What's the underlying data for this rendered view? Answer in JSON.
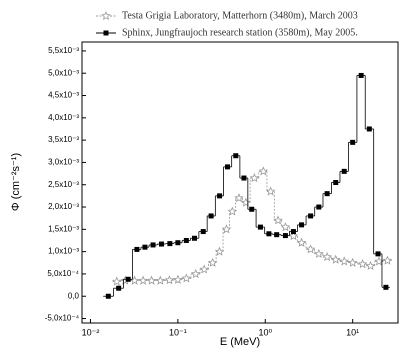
{
  "chart_data": {
    "type": "step",
    "x_label": "E (MeV)",
    "y_label": "Φ (cm⁻²s⁻¹)",
    "log_x": true,
    "xlim": [
      0.008,
      33
    ],
    "xticks": [
      {
        "value": 0.01,
        "label": "10⁻²"
      },
      {
        "value": 0.1,
        "label": "10⁻¹"
      },
      {
        "value": 1,
        "label": "10⁰"
      },
      {
        "value": 10,
        "label": "10¹"
      }
    ],
    "ylim": [
      -0.0006,
      0.0057
    ],
    "yticks": [
      {
        "value": 0.0055,
        "label": "5,5x10⁻³"
      },
      {
        "value": 0.005,
        "label": "5,0x10⁻³"
      },
      {
        "value": 0.0045,
        "label": "4,5x10⁻³"
      },
      {
        "value": 0.004,
        "label": "4,0x10⁻³"
      },
      {
        "value": 0.0035,
        "label": "3,5x10⁻³"
      },
      {
        "value": 0.003,
        "label": "3,0x10⁻³"
      },
      {
        "value": 0.0025,
        "label": "2,5x10⁻³"
      },
      {
        "value": 0.002,
        "label": "2,0x10⁻³"
      },
      {
        "value": 0.0015,
        "label": "1,5x10⁻³"
      },
      {
        "value": 0.001,
        "label": "1,0x10⁻³"
      },
      {
        "value": 0.0005,
        "label": "5,0x10⁻⁴"
      },
      {
        "value": 0,
        "label": "0,0"
      },
      {
        "value": -0.0005,
        "label": "-5,0x10⁻⁴"
      }
    ],
    "series": [
      {
        "name": "Testa Grigia Laboratory, Matterhorn (3480m), March 2003",
        "color": "#999999",
        "marker": "star",
        "x": [
          0.02,
          0.025,
          0.032,
          0.04,
          0.05,
          0.063,
          0.08,
          0.1,
          0.125,
          0.16,
          0.2,
          0.25,
          0.3,
          0.36,
          0.42,
          0.5,
          0.6,
          0.75,
          0.95,
          1.15,
          1.4,
          1.7,
          2.1,
          2.6,
          3.3,
          4.1,
          5.1,
          6.4,
          8,
          10,
          13,
          16,
          20,
          25
        ],
        "values": [
          0.00033,
          0.00035,
          0.00035,
          0.00035,
          0.00035,
          0.00035,
          0.00036,
          0.00037,
          0.0004,
          0.0005,
          0.0006,
          0.00075,
          0.001,
          0.0015,
          0.0019,
          0.0022,
          0.0021,
          0.00265,
          0.0028,
          0.00235,
          0.0017,
          0.00155,
          0.00135,
          0.0012,
          0.00105,
          0.00095,
          0.00088,
          0.00082,
          0.00078,
          0.00075,
          0.00072,
          0.00068,
          0.00078,
          0.0008
        ]
      },
      {
        "name": "Sphinx, Jungfraujoch research station (3580m), May 2005.",
        "color": "#000000",
        "marker": "square",
        "x": [
          0.016,
          0.021,
          0.027,
          0.034,
          0.042,
          0.052,
          0.065,
          0.081,
          0.1,
          0.125,
          0.155,
          0.195,
          0.24,
          0.3,
          0.37,
          0.46,
          0.57,
          0.7,
          0.88,
          1.1,
          1.35,
          1.7,
          2.1,
          2.6,
          3.3,
          4.1,
          5.1,
          6.4,
          8,
          10,
          12.5,
          15.5,
          19.5,
          24
        ],
        "values": [
          0,
          0.00018,
          0.00038,
          0.00105,
          0.0011,
          0.00115,
          0.00117,
          0.00118,
          0.0012,
          0.00125,
          0.0013,
          0.00145,
          0.0018,
          0.00225,
          0.0029,
          0.00315,
          0.00265,
          0.00195,
          0.00155,
          0.0014,
          0.00138,
          0.00136,
          0.00145,
          0.0016,
          0.0018,
          0.002,
          0.0023,
          0.00255,
          0.0028,
          0.00345,
          0.00495,
          0.00375,
          0.00095,
          0.0002
        ]
      }
    ]
  }
}
